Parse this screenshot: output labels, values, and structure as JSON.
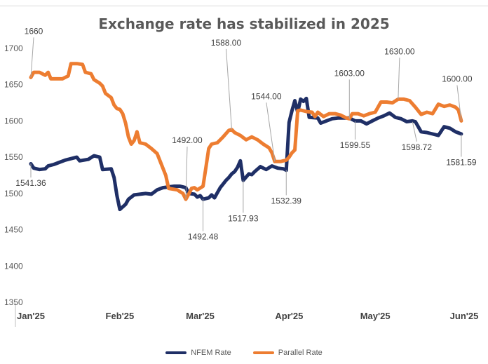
{
  "chart_data": {
    "type": "line",
    "title": "Exchange rate has stabilized in 2025",
    "xlabel": "",
    "ylabel": "",
    "ylim": [
      1350,
      1700
    ],
    "yticks": [
      "1700",
      "1650",
      "1600",
      "1550",
      "1500",
      "1450",
      "1400",
      "1350"
    ],
    "x_tick_labels": [
      "Jan'25",
      "Feb'25",
      "Mar'25",
      "Apr'25",
      "May'25",
      "Jun'25"
    ],
    "x_days": [
      0,
      31,
      59,
      90,
      120,
      151
    ],
    "grid": false,
    "legend_position": "bottom",
    "series": [
      {
        "name": "NFEM Rate",
        "color": "#1F2F66",
        "points": [
          [
            0,
            1541
          ],
          [
            1,
            1535
          ],
          [
            3,
            1533
          ],
          [
            5,
            1534
          ],
          [
            6,
            1538
          ],
          [
            8,
            1540
          ],
          [
            10,
            1543
          ],
          [
            12,
            1546
          ],
          [
            14,
            1548
          ],
          [
            16,
            1550
          ],
          [
            17,
            1545
          ],
          [
            20,
            1547
          ],
          [
            22,
            1552
          ],
          [
            24,
            1550
          ],
          [
            25,
            1533
          ],
          [
            28,
            1534
          ],
          [
            29,
            1522
          ],
          [
            30,
            1497
          ],
          [
            31,
            1478
          ],
          [
            33,
            1485
          ],
          [
            34,
            1492
          ],
          [
            36,
            1498
          ],
          [
            38,
            1499
          ],
          [
            40,
            1500
          ],
          [
            42,
            1499
          ],
          [
            44,
            1505
          ],
          [
            46,
            1508
          ],
          [
            48,
            1509
          ],
          [
            50,
            1510
          ],
          [
            52,
            1510
          ],
          [
            54,
            1508
          ],
          [
            55,
            1500
          ],
          [
            57,
            1499
          ],
          [
            58,
            1495
          ],
          [
            59,
            1497
          ],
          [
            60,
            1492
          ],
          [
            62,
            1494
          ],
          [
            63,
            1498
          ],
          [
            64,
            1494
          ],
          [
            65,
            1501
          ],
          [
            66,
            1508
          ],
          [
            67,
            1513
          ],
          [
            68,
            1518
          ],
          [
            69,
            1522
          ],
          [
            70,
            1527
          ],
          [
            71,
            1530
          ],
          [
            72,
            1536
          ],
          [
            73,
            1545
          ],
          [
            74,
            1518
          ],
          [
            76,
            1527
          ],
          [
            77,
            1526
          ],
          [
            78,
            1530
          ],
          [
            80,
            1537
          ],
          [
            82,
            1533
          ],
          [
            84,
            1538
          ],
          [
            86,
            1535
          ],
          [
            88,
            1534
          ],
          [
            89,
            1532
          ],
          [
            90,
            1598
          ],
          [
            91,
            1614
          ],
          [
            92,
            1628
          ],
          [
            93,
            1612
          ],
          [
            94,
            1630
          ],
          [
            95,
            1627
          ],
          [
            96,
            1631
          ],
          [
            97,
            1605
          ],
          [
            100,
            1604
          ],
          [
            101,
            1597
          ],
          [
            103,
            1600
          ],
          [
            105,
            1603
          ],
          [
            107,
            1604
          ],
          [
            109,
            1604
          ],
          [
            111,
            1604
          ],
          [
            113,
            1600
          ],
          [
            115,
            1600
          ],
          [
            117,
            1596
          ],
          [
            119,
            1600
          ],
          [
            121,
            1604
          ],
          [
            123,
            1607
          ],
          [
            125,
            1611
          ],
          [
            127,
            1605
          ],
          [
            129,
            1603
          ],
          [
            131,
            1599
          ],
          [
            133,
            1600
          ],
          [
            134,
            1599
          ],
          [
            136,
            1585
          ],
          [
            138,
            1584
          ],
          [
            140,
            1582
          ],
          [
            142,
            1580
          ],
          [
            144,
            1592
          ],
          [
            146,
            1590
          ],
          [
            148,
            1585
          ],
          [
            150,
            1582
          ]
        ],
        "labels": [
          {
            "x": 0,
            "y": 1541.36,
            "text": "1541.36"
          },
          {
            "x": 60,
            "y": 1492.48,
            "text": "1492.48"
          },
          {
            "x": 74,
            "y": 1517.93,
            "text": "1517.93"
          },
          {
            "x": 89,
            "y": 1532.39,
            "text": "1532.39"
          },
          {
            "x": 113,
            "y": 1599.55,
            "text": "1599.55"
          },
          {
            "x": 133,
            "y": 1598.72,
            "text": "1598.72"
          },
          {
            "x": 150,
            "y": 1581.59,
            "text": "1581.59"
          }
        ]
      },
      {
        "name": "Parallel Rate",
        "color": "#ED7D31",
        "points": [
          [
            0,
            1660
          ],
          [
            1,
            1667
          ],
          [
            3,
            1667
          ],
          [
            5,
            1663
          ],
          [
            6,
            1667
          ],
          [
            7,
            1658
          ],
          [
            9,
            1658
          ],
          [
            11,
            1658
          ],
          [
            13,
            1662
          ],
          [
            14,
            1679
          ],
          [
            16,
            1679
          ],
          [
            18,
            1678
          ],
          [
            19,
            1667
          ],
          [
            21,
            1665
          ],
          [
            22,
            1657
          ],
          [
            24,
            1652
          ],
          [
            25,
            1648
          ],
          [
            26,
            1638
          ],
          [
            28,
            1632
          ],
          [
            29,
            1622
          ],
          [
            30,
            1617
          ],
          [
            31,
            1616
          ],
          [
            32,
            1610
          ],
          [
            33,
            1597
          ],
          [
            34,
            1578
          ],
          [
            35,
            1568
          ],
          [
            36,
            1573
          ],
          [
            37,
            1585
          ],
          [
            38,
            1570
          ],
          [
            40,
            1568
          ],
          [
            42,
            1562
          ],
          [
            44,
            1555
          ],
          [
            45,
            1545
          ],
          [
            47,
            1525
          ],
          [
            48,
            1507
          ],
          [
            51,
            1505
          ],
          [
            53,
            1500
          ],
          [
            54,
            1492
          ],
          [
            55,
            1499
          ],
          [
            56,
            1507
          ],
          [
            57,
            1508
          ],
          [
            58,
            1505
          ],
          [
            60,
            1510
          ],
          [
            61,
            1536
          ],
          [
            62,
            1562
          ],
          [
            63,
            1568
          ],
          [
            65,
            1570
          ],
          [
            67,
            1578
          ],
          [
            69,
            1587
          ],
          [
            70,
            1588
          ],
          [
            71,
            1584
          ],
          [
            73,
            1580
          ],
          [
            75,
            1574
          ],
          [
            77,
            1578
          ],
          [
            79,
            1574
          ],
          [
            81,
            1568
          ],
          [
            83,
            1563
          ],
          [
            84,
            1556
          ],
          [
            85,
            1544
          ],
          [
            87,
            1544
          ],
          [
            89,
            1546
          ],
          [
            90,
            1550
          ],
          [
            91,
            1556
          ],
          [
            92,
            1560
          ],
          [
            93,
            1614
          ],
          [
            94,
            1615
          ],
          [
            96,
            1613
          ],
          [
            98,
            1612
          ],
          [
            99,
            1606
          ],
          [
            100,
            1612
          ],
          [
            102,
            1606
          ],
          [
            104,
            1610
          ],
          [
            106,
            1610
          ],
          [
            108,
            1608
          ],
          [
            110,
            1604
          ],
          [
            111,
            1603
          ],
          [
            112,
            1610
          ],
          [
            114,
            1610
          ],
          [
            116,
            1607
          ],
          [
            118,
            1610
          ],
          [
            120,
            1612
          ],
          [
            122,
            1626
          ],
          [
            124,
            1626
          ],
          [
            126,
            1625
          ],
          [
            128,
            1630
          ],
          [
            130,
            1630
          ],
          [
            132,
            1628
          ],
          [
            134,
            1619
          ],
          [
            136,
            1609
          ],
          [
            138,
            1612
          ],
          [
            140,
            1610
          ],
          [
            142,
            1623
          ],
          [
            144,
            1620
          ],
          [
            146,
            1622
          ],
          [
            148,
            1619
          ],
          [
            149,
            1615
          ],
          [
            150,
            1600
          ]
        ],
        "labels": [
          {
            "x": 0,
            "y": 1660,
            "text": "1660"
          },
          {
            "x": 54,
            "y": 1492,
            "text": "1492.00"
          },
          {
            "x": 70,
            "y": 1588,
            "text": "1588.00"
          },
          {
            "x": 85,
            "y": 1544,
            "text": "1544.00"
          },
          {
            "x": 111,
            "y": 1603,
            "text": "1603.00"
          },
          {
            "x": 128,
            "y": 1630,
            "text": "1630.00"
          },
          {
            "x": 150,
            "y": 1600,
            "text": "1600.00"
          }
        ]
      }
    ]
  }
}
